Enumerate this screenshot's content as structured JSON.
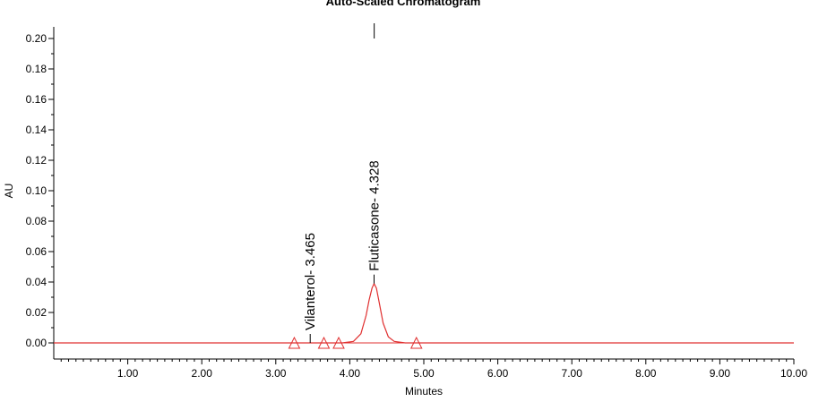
{
  "chart_data": {
    "type": "line",
    "title": "Auto-Scaled Chromatogram",
    "xlabel": "Minutes",
    "ylabel": "AU",
    "xlim": [
      0,
      10
    ],
    "ylim": [
      -0.008,
      0.22
    ],
    "x_ticks": [
      "1.00",
      "2.00",
      "3.00",
      "4.00",
      "5.00",
      "6.00",
      "7.00",
      "8.00",
      "9.00",
      "10.00"
    ],
    "y_ticks": [
      "0.00",
      "0.02",
      "0.04",
      "0.06",
      "0.08",
      "0.10",
      "0.12",
      "0.14",
      "0.16",
      "0.18",
      "0.20"
    ],
    "line_color": "#e03030",
    "baseline_color": "#f08080",
    "series": [
      {
        "x": [
          0,
          3.2,
          3.3,
          3.4,
          3.465,
          3.55,
          3.7,
          3.9,
          4.05,
          4.15,
          4.22,
          4.26,
          4.3,
          4.328,
          4.36,
          4.4,
          4.45,
          4.52,
          4.6,
          4.75,
          4.9,
          5.2,
          6,
          7,
          8,
          9,
          10
        ],
        "values": [
          0,
          0,
          0,
          0,
          0,
          0,
          0,
          0,
          0.001,
          0.006,
          0.018,
          0.028,
          0.036,
          0.039,
          0.036,
          0.026,
          0.013,
          0.004,
          0.001,
          0,
          0,
          0,
          0,
          0,
          0,
          0,
          0
        ]
      }
    ],
    "peaks": [
      {
        "label": "Vilanterol- 3.465",
        "rt": 3.465,
        "height": 0.0,
        "start": 3.25,
        "end": 3.65
      },
      {
        "label": "Fluticasone- 4.328",
        "rt": 4.328,
        "height": 0.039,
        "start": 3.85,
        "end": 4.9
      }
    ],
    "marker": {
      "x": 4.33,
      "y1": 0.2,
      "y2": 0.21
    }
  }
}
